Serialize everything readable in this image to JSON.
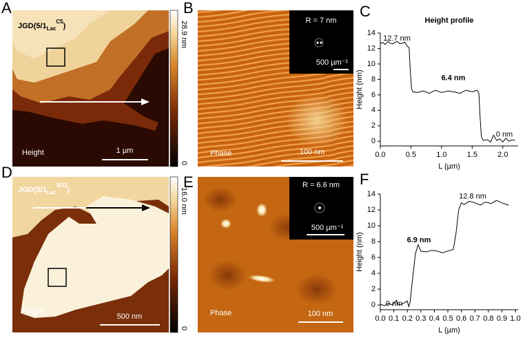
{
  "figure": {
    "panel_a": {
      "letter": "A",
      "title": "JGD(5/1",
      "title_sub": "Lac",
      "title_sup": "C5",
      "title_end": ")",
      "mode": "Height",
      "scale_bar": "1 µm",
      "colorbar_max": "28.9 nm",
      "colorbar_min": "0"
    },
    "panel_b": {
      "letter": "B",
      "mode": "Phase",
      "scale_bar": "100 nm",
      "inset_label": "R = 7 nm",
      "inset_scale": "500 µm⁻¹"
    },
    "panel_d": {
      "letter": "D",
      "title": "JGD(5/1",
      "title_sub": "Lac",
      "title_sup": "3EO",
      "title_end": ")",
      "mode": "Height",
      "scale_bar": "500 nm",
      "colorbar_max": "16.0 nm",
      "colorbar_min": "0"
    },
    "panel_e": {
      "letter": "E",
      "mode": "Phase",
      "scale_bar": "100 nm",
      "inset_label": "R = 6.6 nm",
      "inset_scale": "500 µm⁻¹"
    }
  },
  "chart_data": [
    {
      "type": "line",
      "panel_label": "C",
      "title": "Height profile",
      "x_label": "L (µm)",
      "y_label": "Height (nm)",
      "color": "#000000",
      "x": [
        0,
        0.04,
        0.08,
        0.12,
        0.16,
        0.2,
        0.24,
        0.28,
        0.32,
        0.36,
        0.4,
        0.44,
        0.47,
        0.49,
        0.51,
        0.53,
        0.6,
        0.7,
        0.8,
        0.9,
        1.0,
        1.1,
        1.2,
        1.3,
        1.4,
        1.5,
        1.58,
        1.61,
        1.63,
        1.65,
        1.68,
        1.75,
        1.8,
        1.85,
        1.9,
        1.95,
        2.0,
        2.05,
        2.1,
        2.15,
        2.2
      ],
      "values": [
        12.6,
        12.8,
        12.5,
        12.9,
        12.7,
        12.6,
        12.8,
        12.9,
        12.6,
        12.7,
        12.8,
        12.3,
        12.1,
        9.0,
        6.8,
        6.4,
        6.3,
        6.5,
        6.2,
        6.6,
        6.3,
        6.5,
        6.4,
        6.2,
        6.6,
        6.4,
        6.6,
        6.2,
        3.0,
        0.6,
        0.1,
        0.2,
        -0.1,
        0.8,
        0.1,
        0.3,
        -0.1,
        0.4,
        0.0,
        0.2,
        0.1
      ],
      "xlim": [
        0,
        2.25
      ],
      "xticks": [
        {
          "value": 0,
          "label": "0.0"
        },
        0.5,
        {
          "value": 1,
          "label": "1.0"
        },
        1.5,
        {
          "value": 2,
          "label": "2.0"
        }
      ],
      "ylim": [
        -0.6,
        14
      ],
      "yticks": [
        0,
        2,
        4,
        6,
        8,
        10,
        12,
        14
      ],
      "annotations": [
        {
          "text": "12.7 nm",
          "bold": false
        },
        {
          "text": "6.4 nm",
          "bold": true
        },
        {
          "text": "0 nm",
          "bold": false
        }
      ]
    },
    {
      "type": "line",
      "panel_label": "F",
      "x_label": "L (µm)",
      "y_label": "Height (nm)",
      "color": "#000000",
      "x": [
        0,
        0.03,
        0.06,
        0.09,
        0.12,
        0.13,
        0.14,
        0.17,
        0.2,
        0.21,
        0.22,
        0.24,
        0.26,
        0.28,
        0.3,
        0.34,
        0.38,
        0.42,
        0.46,
        0.5,
        0.54,
        0.56,
        0.58,
        0.6,
        0.62,
        0.66,
        0.7,
        0.74,
        0.78,
        0.82,
        0.86,
        0.9,
        0.95
      ],
      "values": [
        0.1,
        -0.1,
        0.2,
        0.0,
        0.6,
        0.1,
        0.0,
        0.2,
        0.5,
        -0.2,
        0.3,
        3.5,
        6.5,
        7.6,
        6.8,
        6.7,
        6.9,
        6.8,
        6.6,
        6.8,
        7.0,
        9.0,
        12.0,
        12.9,
        12.7,
        13.1,
        12.9,
        12.6,
        13.0,
        12.8,
        13.2,
        12.9,
        12.6
      ],
      "xlim": [
        0,
        1.02
      ],
      "xticks": [
        {
          "value": 0,
          "label": "0.0"
        },
        0.1,
        0.2,
        0.3,
        0.4,
        0.5,
        0.6,
        0.7,
        0.8,
        0.9,
        {
          "value": 1,
          "label": "1.0"
        }
      ],
      "ylim": [
        -0.6,
        14
      ],
      "yticks": [
        0,
        2,
        4,
        6,
        8,
        10,
        12,
        14
      ],
      "annotations": [
        {
          "text": "0 nm",
          "bold": false
        },
        {
          "text": "6.9 nm",
          "bold": true
        },
        {
          "text": "12.8 nm",
          "bold": false
        }
      ]
    }
  ]
}
